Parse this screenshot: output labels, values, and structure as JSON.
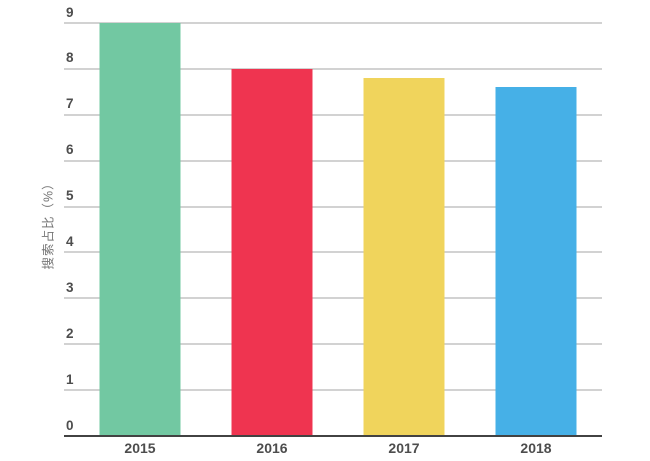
{
  "chart_data": {
    "type": "bar",
    "title": "",
    "categories": [
      "2015",
      "2016",
      "2017",
      "2018"
    ],
    "values": [
      9,
      8,
      7.8,
      7.6
    ],
    "bar_colors": [
      "#72C8A2",
      "#EF3450",
      "#F0D45C",
      "#46B0E7"
    ],
    "xlabel": "",
    "ylabel": "搜索占比（%）",
    "ylim": [
      0,
      9
    ],
    "yticks": [
      0,
      1,
      2,
      3,
      4,
      5,
      6,
      7,
      8,
      9
    ],
    "grid": "horizontal",
    "legend": "none"
  },
  "theme": {
    "background": "#FFFFFF",
    "gridline_color": "#D2D2D2",
    "axis_line_color": "#424242",
    "tick_label_color": "#4D4D4D",
    "axis_title_color": "#757575"
  }
}
